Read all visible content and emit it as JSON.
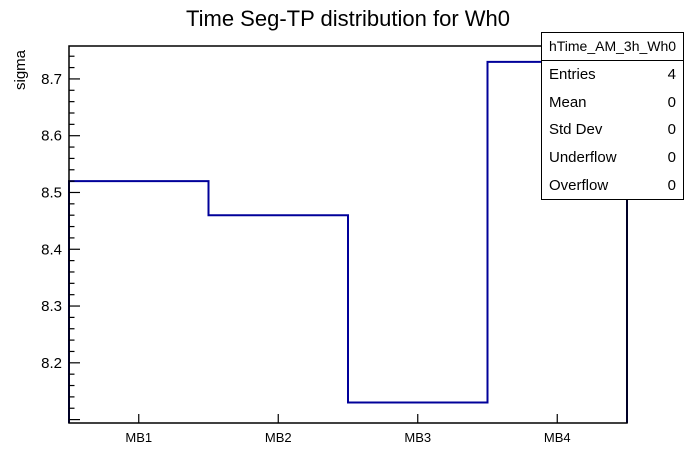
{
  "title": "Time Seg-TP distribution for Wh0",
  "stats": {
    "title": "hTime_AM_3h_Wh0",
    "rows": [
      {
        "label": "Entries",
        "value": "4"
      },
      {
        "label": "Mean",
        "value": "0"
      },
      {
        "label": "Std Dev",
        "value": "0"
      },
      {
        "label": "Underflow",
        "value": "0"
      },
      {
        "label": "Overflow",
        "value": "0"
      }
    ]
  },
  "chart_data": {
    "type": "line",
    "subtype": "step-histogram",
    "title": "Time Seg-TP distribution for Wh0",
    "categories": [
      "MB1",
      "MB2",
      "MB3",
      "MB4"
    ],
    "values": [
      8.52,
      8.46,
      8.13,
      8.73
    ],
    "xlabel": "",
    "ylabel": "sigma",
    "ylim": [
      8.094,
      8.758
    ],
    "yticks_major": [
      8.2,
      8.3,
      8.4,
      8.5,
      8.6,
      8.7
    ],
    "ytick_minor_step": 0.02,
    "grid": false,
    "legend_position": "none",
    "line_color": "#00009a",
    "frame_color": "#000000"
  }
}
